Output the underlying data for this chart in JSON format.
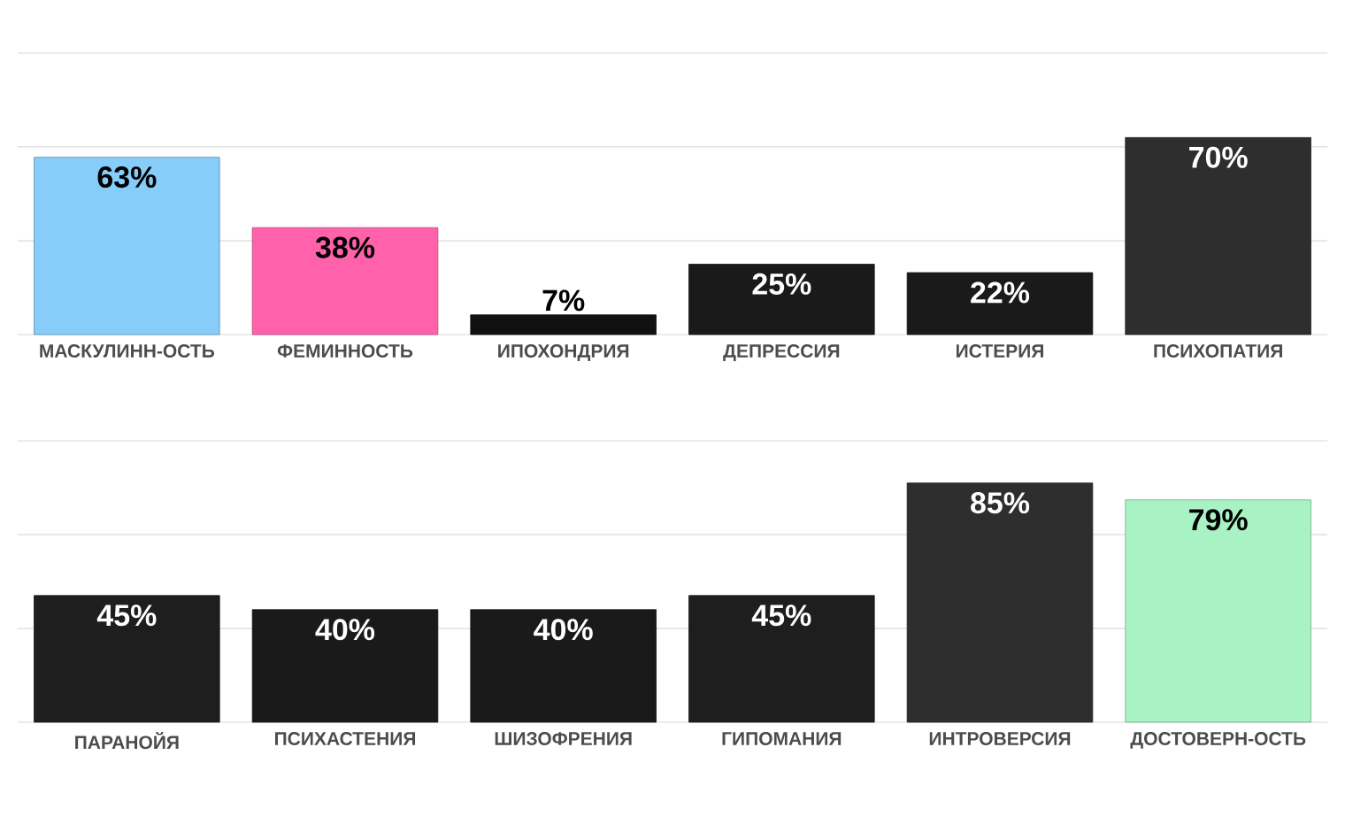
{
  "chart_data": [
    {
      "type": "bar",
      "categories": [
        "МАСКУЛИНН-ОСТЬ",
        "ФЕМИННОСТЬ",
        "ИПОХОНДРИЯ",
        "ДЕПРЕССИЯ",
        "ИСТЕРИЯ",
        "ПСИХОПАТИЯ"
      ],
      "values": [
        63,
        38,
        7,
        25,
        22,
        70
      ],
      "value_labels": [
        "63%",
        "38%",
        "7%",
        "25%",
        "22%",
        "70%"
      ],
      "colors": [
        "#86cdf9",
        "#ff62aa",
        "#111111",
        "#1a1a1a",
        "#1a1a1a",
        "#2e2e2e"
      ],
      "ylim": [
        0,
        100
      ],
      "yticks": [
        {
          "value": 0,
          "label": null
        },
        {
          "value": 33.3,
          "label": null
        },
        {
          "value": 66.7,
          "label": null
        },
        {
          "value": 100,
          "label": null
        }
      ],
      "grid": "y",
      "tick_labels": "x"
    },
    {
      "type": "bar",
      "categories": [
        "ПАРАНОЙЯ",
        "ПСИХАСТЕНИЯ",
        "ШИЗОФРЕНИЯ",
        "ГИПОМАНИЯ",
        "ИНТРОВЕРСИЯ",
        "ДОСТОВЕРН-ОСТЬ"
      ],
      "values": [
        45,
        40,
        40,
        45,
        85,
        79
      ],
      "value_labels": [
        "45%",
        "40%",
        "40%",
        "45%",
        "85%",
        "79%"
      ],
      "colors": [
        "#1e1e1e",
        "#1a1a1a",
        "#1a1a1a",
        "#1e1e1e",
        "#2e2e2e",
        "#a8f2c4"
      ],
      "ylim": [
        0,
        100
      ],
      "yticks": [
        {
          "value": 0,
          "label": null
        },
        {
          "value": 33.3,
          "label": null
        },
        {
          "value": 66.7,
          "label": null
        },
        {
          "value": 100,
          "label": null
        }
      ],
      "grid": "y",
      "tick_labels": "x"
    }
  ]
}
